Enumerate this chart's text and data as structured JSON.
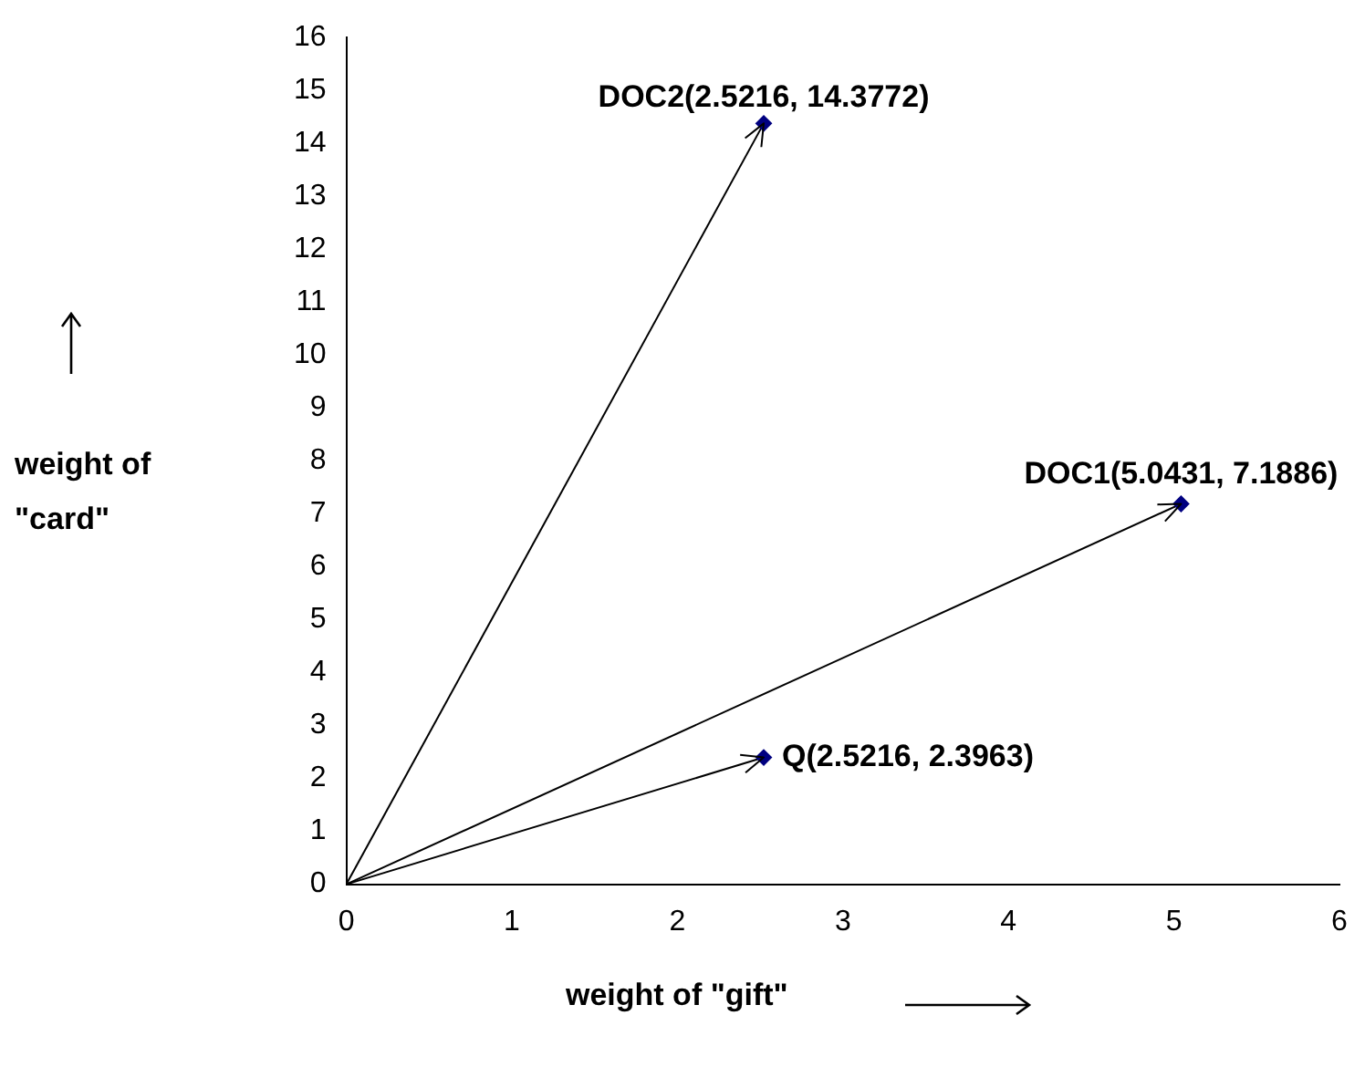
{
  "chart_data": {
    "type": "scatter",
    "xlabel": "weight of \"gift\"",
    "ylabel": "weight of \"card\"",
    "series": [
      {
        "type": "scatter",
        "color": "#000080",
        "marker": "diamond",
        "x": [
          2.5216,
          5.0431,
          2.5216
        ],
        "values": [
          14.3772,
          7.1886,
          2.3963
        ]
      },
      {
        "type": "line",
        "color": "#000000",
        "marker": "none",
        "x": [
          0,
          2.5216
        ],
        "values": [
          0,
          14.3772
        ]
      },
      {
        "type": "line",
        "color": "#000000",
        "marker": "none",
        "x": [
          0,
          5.0431
        ],
        "values": [
          0,
          7.1886
        ]
      },
      {
        "type": "line",
        "color": "#000000",
        "marker": "none",
        "x": [
          0,
          2.5216
        ],
        "values": [
          0,
          2.3963
        ]
      }
    ],
    "annotations": [
      "DOC2(2.5216, 14.3772)",
      "DOC1(5.0431, 7.1886)",
      "Q(2.5216, 2.3963)"
    ],
    "xlim": [
      0,
      6
    ],
    "ylim": [
      0,
      16
    ],
    "xticks": [
      0,
      1,
      2,
      3,
      4,
      5,
      6
    ],
    "yticks": [
      0,
      1,
      2,
      3,
      4,
      5,
      6,
      7,
      8,
      9,
      10,
      11,
      12,
      13,
      14,
      15,
      16
    ],
    "grid": false,
    "legend": false
  }
}
